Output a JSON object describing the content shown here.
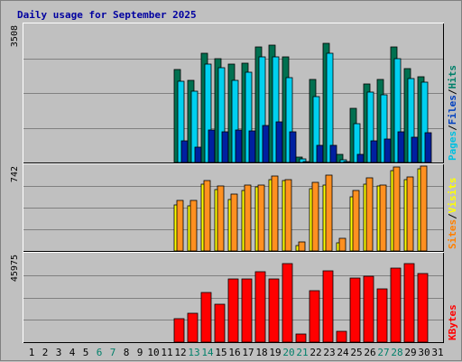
{
  "chart_data": {
    "type": "bar",
    "title": "Daily usage for September 2025",
    "days": [
      "1",
      "2",
      "3",
      "4",
      "5",
      "6",
      "7",
      "8",
      "9",
      "10",
      "11",
      "12",
      "13",
      "14",
      "15",
      "16",
      "17",
      "18",
      "19",
      "20",
      "21",
      "22",
      "23",
      "24",
      "25",
      "26",
      "27",
      "28",
      "29",
      "30",
      "31"
    ],
    "weekend_days": [
      6,
      7,
      13,
      14,
      20,
      21,
      27,
      28
    ],
    "panels": [
      {
        "ymax_label": "3508",
        "ymax": 3508,
        "legend": [
          {
            "text": "Pages",
            "color": "#00c0e0"
          },
          {
            "text": "/",
            "color": "#000000"
          },
          {
            "text": "Files",
            "color": "#0040c0"
          },
          {
            "text": "/",
            "color": "#000000"
          },
          {
            "text": "Hits",
            "color": "#00806a"
          }
        ],
        "series": [
          {
            "name": "Hits",
            "color": "#007050",
            "values": [
              0,
              0,
              0,
              0,
              0,
              0,
              0,
              0,
              0,
              0,
              0,
              2420,
              2120,
              2830,
              2700,
              2560,
              2580,
              3000,
              3030,
              2740,
              140,
              2160,
              3080,
              200,
              1400,
              2040,
              2160,
              3000,
              2440,
              2220,
              0
            ]
          },
          {
            "name": "Files",
            "color": "#00d0f0",
            "values": [
              0,
              0,
              0,
              0,
              0,
              0,
              0,
              0,
              0,
              0,
              0,
              2100,
              1850,
              2560,
              2450,
              2120,
              2330,
              2730,
              2740,
              2200,
              90,
              1700,
              2830,
              80,
              1000,
              1820,
              1750,
              2680,
              2180,
              2080,
              0
            ]
          },
          {
            "name": "Pages",
            "color": "#0020a0",
            "values": [
              0,
              0,
              0,
              0,
              0,
              0,
              0,
              0,
              0,
              0,
              0,
              550,
              400,
              850,
              800,
              850,
              820,
              950,
              1050,
              800,
              20,
              450,
              450,
              20,
              200,
              550,
              600,
              800,
              650,
              780,
              0
            ]
          }
        ]
      },
      {
        "ymax_label": "742",
        "ymax": 742,
        "legend": [
          {
            "text": "Sites",
            "color": "#ff8000"
          },
          {
            "text": "/",
            "color": "#000000"
          },
          {
            "text": "Visits",
            "color": "#ffff00"
          }
        ],
        "series": [
          {
            "name": "Visits",
            "color": "#ffff00",
            "values": [
              0,
              0,
              0,
              0,
              0,
              0,
              0,
              0,
              0,
              0,
              0,
              410,
              400,
              600,
              550,
              460,
              540,
              570,
              640,
              630,
              50,
              560,
              590,
              70,
              480,
              600,
              580,
              720,
              640,
              730,
              0
            ]
          },
          {
            "name": "Sites",
            "color": "#ff9020",
            "values": [
              0,
              0,
              0,
              0,
              0,
              0,
              0,
              0,
              0,
              0,
              0,
              450,
              450,
              630,
              580,
              510,
              590,
              590,
              670,
              640,
              80,
              610,
              680,
              110,
              540,
              650,
              590,
              750,
              660,
              760,
              0
            ]
          }
        ]
      },
      {
        "ymax_label": "45975",
        "ymax": 45975,
        "legend": [
          {
            "text": "KBytes",
            "color": "#ff0000"
          }
        ],
        "series": [
          {
            "name": "KBytes",
            "color": "#ff0000",
            "values": [
              0,
              0,
              0,
              0,
              0,
              0,
              0,
              0,
              0,
              0,
              0,
              12500,
              15600,
              26400,
              20300,
              34000,
              33700,
              37600,
              33800,
              41900,
              4300,
              27500,
              38200,
              5600,
              34400,
              35400,
              28700,
              39800,
              42100,
              36700,
              0
            ]
          }
        ]
      }
    ]
  }
}
